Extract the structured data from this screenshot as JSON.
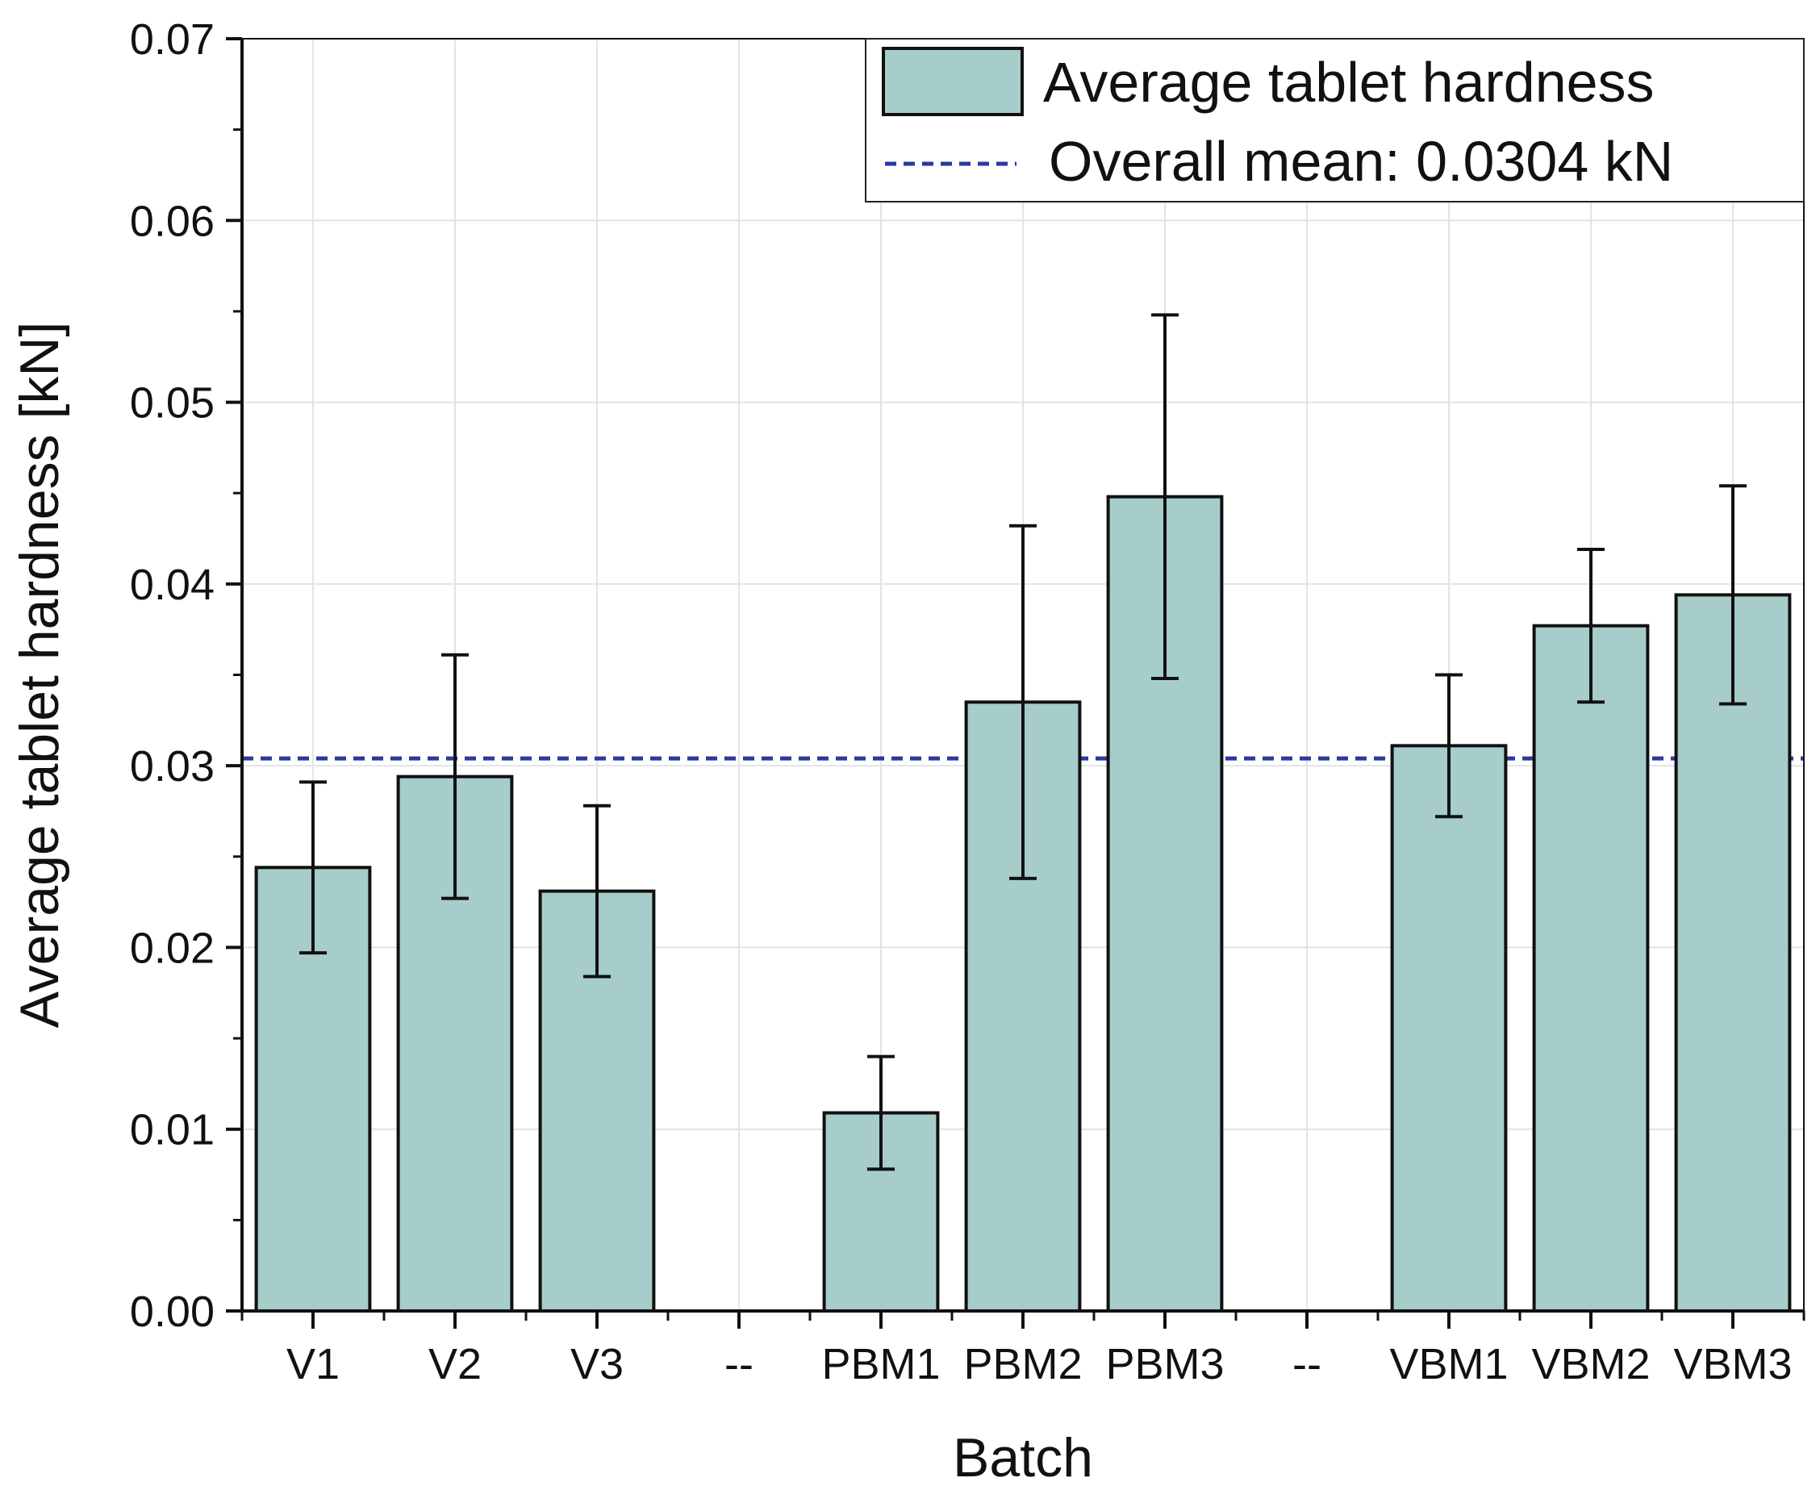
{
  "chart_data": {
    "type": "bar",
    "title": "",
    "xlabel": "Batch",
    "ylabel": "Average tablet hardness [kN]",
    "ylim": [
      0,
      0.07
    ],
    "yticks": [
      "0.00",
      "0.01",
      "0.02",
      "0.03",
      "0.04",
      "0.05",
      "0.06",
      "0.07"
    ],
    "grid": true,
    "categories": [
      "V1",
      "V2",
      "V3",
      "--",
      "PBM1",
      "PBM2",
      "PBM3",
      "--",
      "VBM1",
      "VBM2",
      "VBM3"
    ],
    "series": [
      {
        "name": "Average tablet hardness",
        "values": [
          0.0244,
          0.0294,
          0.0231,
          null,
          0.0109,
          0.0335,
          0.0448,
          null,
          0.0311,
          0.0377,
          0.0394
        ],
        "error": [
          0.0047,
          0.0067,
          0.0047,
          null,
          0.0031,
          0.0097,
          0.01,
          null,
          0.0039,
          0.0042,
          0.006
        ],
        "color": "#a6cdca"
      }
    ],
    "reference_line": {
      "label": "Overall mean: 0.0304 kN",
      "value": 0.0304,
      "color": "#2b3a9c",
      "style": "dashed"
    },
    "legend": {
      "position": "top-right",
      "entries": [
        "Average tablet hardness",
        "Overall mean: 0.0304 kN"
      ]
    }
  }
}
